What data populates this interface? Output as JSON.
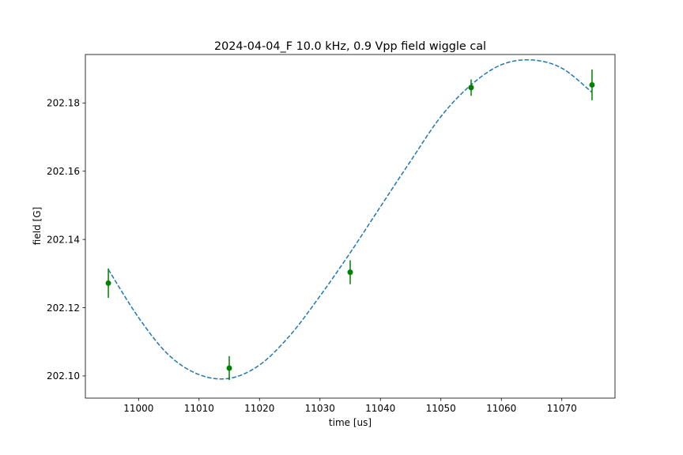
{
  "chart_data": {
    "type": "scatter",
    "title": "2024-04-04_F 10.0 kHz, 0.9 Vpp field wiggle cal",
    "xlabel": "time [us]",
    "ylabel": "field [G]",
    "xlim": [
      10991.2,
      11078.8
    ],
    "ylim": [
      202.0935,
      202.1942
    ],
    "xticks": [
      11000,
      11010,
      11020,
      11030,
      11040,
      11050,
      11060,
      11070
    ],
    "yticks": [
      202.1,
      202.12,
      202.14,
      202.16,
      202.18
    ],
    "ytick_labels": [
      "202.10",
      "202.12",
      "202.14",
      "202.16",
      "202.18"
    ],
    "grid": false,
    "series": [
      {
        "kind": "errorbar",
        "color": "#008000",
        "x": [
          10995,
          11015,
          11035,
          11055,
          11075
        ],
        "y": [
          202.1272,
          202.1023,
          202.1304,
          202.1845,
          202.1853
        ],
        "yerr": [
          0.0043,
          0.0035,
          0.0035,
          0.0024,
          0.0045
        ]
      },
      {
        "kind": "fit-line",
        "color": "#1f77b4",
        "style": "dashed",
        "x": [
          10995,
          11000,
          11005,
          11010,
          11015,
          11020,
          11025,
          11030,
          11035,
          11040,
          11045,
          11050,
          11055,
          11060,
          11065,
          11070,
          11075
        ],
        "y": [
          202.1312,
          202.1171,
          202.1061,
          202.1004,
          202.0993,
          202.1032,
          202.1118,
          202.1234,
          202.1361,
          202.1496,
          202.163,
          202.176,
          202.1853,
          202.1912,
          202.1926,
          202.1902,
          202.1831
        ]
      }
    ]
  }
}
